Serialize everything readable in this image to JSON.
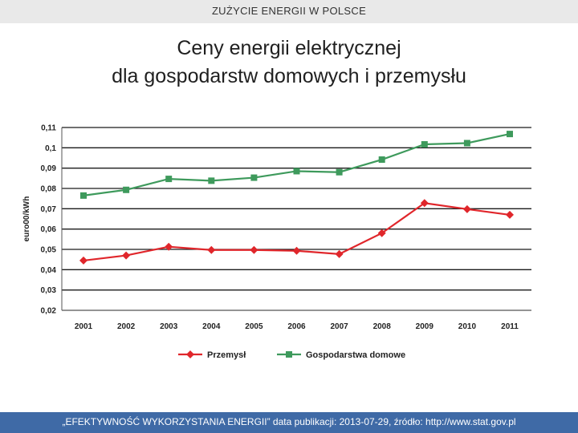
{
  "header": {
    "text": "ZUŻYCIE ENERGII W POLSCE"
  },
  "title": {
    "line1": "Ceny energii elektrycznej",
    "line2": "dla gospodarstw domowych i przemysłu"
  },
  "footer": {
    "text": "„EFEKTYWNOŚĆ WYKORZYSTANIA ENERGII” data publikacji: 2013-07-29, źródło: http://www.stat.gov.pl"
  },
  "colors": {
    "header_bg": "#e9e9e9",
    "footer_bg": "#3f6aa6",
    "series_industry": "#e0262b",
    "series_households": "#3e9a5c"
  },
  "chart_data": {
    "type": "line",
    "categories": [
      "2001",
      "2002",
      "2003",
      "2004",
      "2005",
      "2006",
      "2007",
      "2008",
      "2009",
      "2010",
      "2011"
    ],
    "ylabel": "euro00/kWh",
    "ylim": [
      0.02,
      0.11
    ],
    "yticks": [
      "0,02",
      "0,03",
      "0,04",
      "0,05",
      "0,06",
      "0,07",
      "0,08",
      "0,09",
      "0,1",
      "0,11"
    ],
    "grid": true,
    "legend_position": "bottom",
    "series": [
      {
        "name": "Przemysł",
        "color": "#e0262b",
        "marker": "diamond",
        "values": [
          0.0445,
          0.047,
          0.0513,
          0.0497,
          0.0497,
          0.0493,
          0.0477,
          0.058,
          0.0728,
          0.0698,
          0.067
        ]
      },
      {
        "name": "Gospodarstwa domowe",
        "color": "#3e9a5c",
        "marker": "square",
        "values": [
          0.0765,
          0.0793,
          0.0847,
          0.0838,
          0.0853,
          0.0885,
          0.088,
          0.0942,
          0.1017,
          0.1023,
          0.1068
        ]
      }
    ]
  }
}
